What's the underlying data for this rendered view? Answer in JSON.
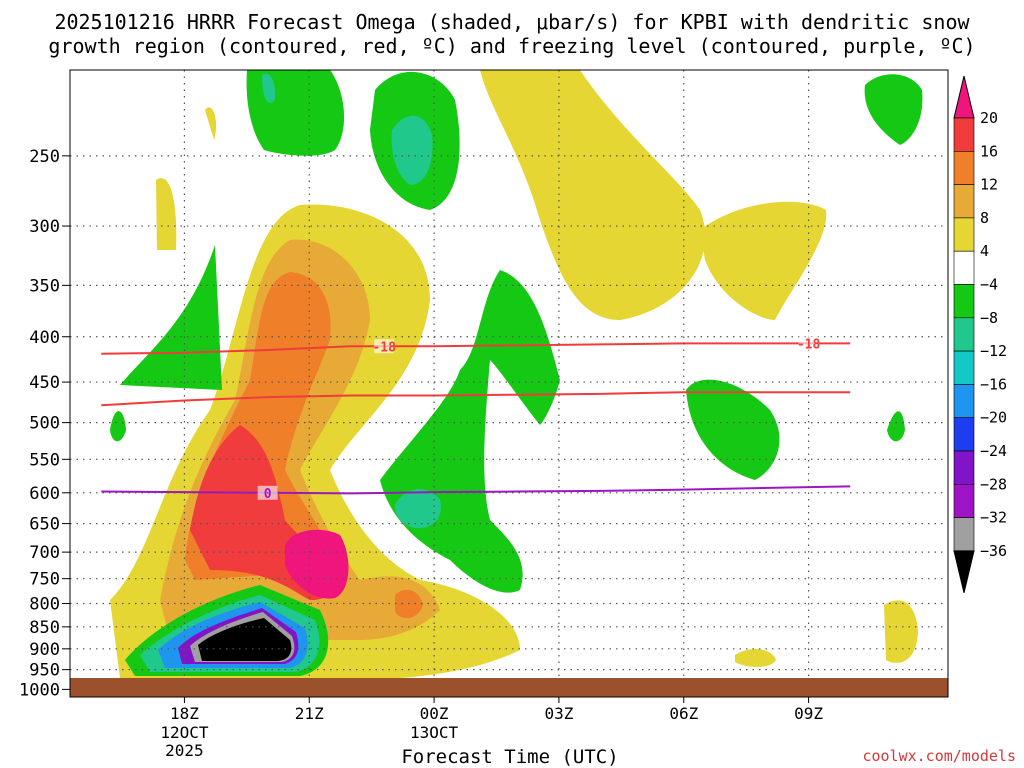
{
  "title": {
    "line1": "2025101216 HRRR Forecast Omega (shaded, μbar/s) for KPBI with dendritic snow",
    "line2": "growth region (contoured, red, ºC) and freezing level (contoured, purple, ºC)"
  },
  "credit": "coolwx.com/models",
  "chart_data": {
    "type": "contour",
    "xlabel": "Forecast Time (UTC)",
    "ylabel": "",
    "y_scale": "log-pressure",
    "ylim": [
      1020,
      200
    ],
    "y_ticks": [
      250,
      300,
      350,
      400,
      450,
      500,
      550,
      600,
      650,
      700,
      750,
      800,
      850,
      900,
      950,
      1000
    ],
    "x_ticks": [
      {
        "hour": 18,
        "label": "18Z",
        "sub1": "12OCT",
        "sub2": "2025"
      },
      {
        "hour": 21,
        "label": "21Z",
        "sub1": "",
        "sub2": ""
      },
      {
        "hour": 24,
        "label": "00Z",
        "sub1": "13OCT",
        "sub2": ""
      },
      {
        "hour": 27,
        "label": "03Z",
        "sub1": "",
        "sub2": ""
      },
      {
        "hour": 30,
        "label": "06Z",
        "sub1": "",
        "sub2": ""
      },
      {
        "hour": 33,
        "label": "09Z",
        "sub1": "",
        "sub2": ""
      }
    ],
    "colorbar": {
      "levels": [
        "20",
        "16",
        "12",
        "8",
        "4",
        "−4",
        "−8",
        "−12",
        "−16",
        "−20",
        "−24",
        "−28",
        "−32",
        "−36"
      ],
      "colors": [
        "#f0147d",
        "#f03c3c",
        "#ef7f28",
        "#e8aa37",
        "#e6d633",
        "#ffffff",
        "#14c814",
        "#20c88c",
        "#14c8c8",
        "#1e96f0",
        "#1e3cf0",
        "#8214c8",
        "#a014c8",
        "#a0a0a0",
        "#000000"
      ]
    },
    "contour_lines": [
      {
        "kind": "dendritic",
        "label": "-18",
        "color": "#f03c3c",
        "pressure": [
          418,
          417,
          414,
          410,
          410,
          409,
          408,
          407,
          407
        ]
      },
      {
        "kind": "dendritic",
        "label": "",
        "color": "#f03c3c",
        "pressure": [
          478,
          472,
          468,
          466,
          466,
          465,
          464,
          462,
          462
        ]
      },
      {
        "kind": "freezing",
        "label": "0",
        "color": "#a014c8",
        "pressure": [
          598,
          599,
          600,
          601,
          599,
          598,
          597,
          595,
          590
        ]
      }
    ],
    "contour_line_hours": [
      16,
      18,
      20,
      22,
      24,
      26,
      28,
      30,
      34
    ]
  }
}
